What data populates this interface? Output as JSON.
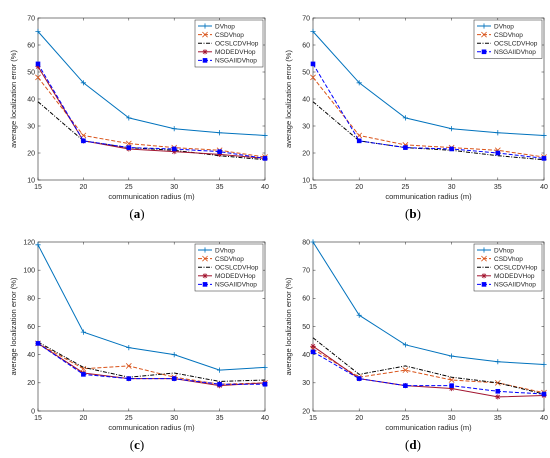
{
  "chart_data": [
    {
      "type": "line",
      "caption": "(a)",
      "xlabel": "communication radius (m)",
      "ylabel": "average localization error (%)",
      "x": [
        15,
        20,
        25,
        30,
        35,
        40
      ],
      "xlim": [
        15,
        40
      ],
      "ylim": [
        10,
        70
      ],
      "xticks": [
        "15",
        "20",
        "25",
        "30",
        "35",
        "40"
      ],
      "yticks": [
        "10",
        "20",
        "30",
        "40",
        "50",
        "60",
        "70"
      ],
      "legend_position": "top-right",
      "series": [
        {
          "name": "DVhop",
          "color": "#0072BD",
          "dash": "",
          "marker": "plus",
          "values": [
            65,
            46,
            33,
            29,
            27.5,
            26.5
          ]
        },
        {
          "name": "CSDVhop",
          "color": "#D95319",
          "dash": "4,2",
          "marker": "x",
          "values": [
            48,
            26.5,
            23.5,
            22,
            21,
            18.5
          ]
        },
        {
          "name": "OCSLCDVHop",
          "color": "#000000",
          "dash": "4,1.5,1,1.5",
          "marker": "none",
          "values": [
            39,
            24.5,
            22,
            21,
            19,
            17.5
          ]
        },
        {
          "name": "MODEDVHop",
          "color": "#A2142F",
          "dash": "",
          "marker": "asterisk",
          "values": [
            52,
            24.5,
            21.5,
            20.5,
            19.5,
            18
          ]
        },
        {
          "name": "NSGAIIDVhop",
          "color": "#0000FF",
          "dash": "4,2",
          "marker": "square",
          "values": [
            53,
            24.5,
            22,
            21.5,
            20.5,
            18
          ]
        }
      ]
    },
    {
      "type": "line",
      "caption": "(b)",
      "xlabel": "communication radius (m)",
      "ylabel": "average localization error (%)",
      "x": [
        15,
        20,
        25,
        30,
        35,
        40
      ],
      "xlim": [
        15,
        40
      ],
      "ylim": [
        10,
        70
      ],
      "xticks": [
        "15",
        "20",
        "25",
        "30",
        "35",
        "40"
      ],
      "yticks": [
        "10",
        "20",
        "30",
        "40",
        "50",
        "60",
        "70"
      ],
      "legend_position": "top-right",
      "series": [
        {
          "name": "DVhop",
          "color": "#0072BD",
          "dash": "",
          "marker": "plus",
          "values": [
            65,
            46,
            33,
            29,
            27.5,
            26.5
          ]
        },
        {
          "name": "CSDVhop",
          "color": "#D95319",
          "dash": "4,2",
          "marker": "x",
          "values": [
            48,
            26.5,
            23,
            22,
            21,
            18.5
          ]
        },
        {
          "name": "OCSLCDVHop",
          "color": "#000000",
          "dash": "4,1.5,1,1.5",
          "marker": "none",
          "values": [
            39,
            24.5,
            22,
            21,
            19,
            17.5
          ]
        },
        {
          "name": "NSGAIIDVhop",
          "color": "#0000FF",
          "dash": "4,2",
          "marker": "square",
          "values": [
            53,
            24.5,
            22,
            21.5,
            20,
            18
          ]
        }
      ]
    },
    {
      "type": "line",
      "caption": "(c)",
      "xlabel": "communication radius (m)",
      "ylabel": "average localization error (%)",
      "x": [
        15,
        20,
        25,
        30,
        35,
        40
      ],
      "xlim": [
        15,
        40
      ],
      "ylim": [
        0,
        120
      ],
      "xticks": [
        "15",
        "20",
        "25",
        "30",
        "35",
        "40"
      ],
      "yticks": [
        "0",
        "20",
        "40",
        "60",
        "80",
        "100",
        "120"
      ],
      "legend_position": "top-right",
      "series": [
        {
          "name": "DVhop",
          "color": "#0072BD",
          "dash": "",
          "marker": "plus",
          "values": [
            118,
            56,
            45,
            40,
            29,
            31
          ]
        },
        {
          "name": "CSDVhop",
          "color": "#D95319",
          "dash": "4,2",
          "marker": "x",
          "values": [
            48,
            30,
            32,
            24,
            19,
            20
          ]
        },
        {
          "name": "OCSLCDVHop",
          "color": "#000000",
          "dash": "4,1.5,1,1.5",
          "marker": "none",
          "values": [
            49,
            31,
            24,
            27,
            21,
            22
          ]
        },
        {
          "name": "MODEDVHop",
          "color": "#A2142F",
          "dash": "",
          "marker": "asterisk",
          "values": [
            48,
            27,
            23,
            23,
            18,
            20
          ]
        },
        {
          "name": "NSGAIIDVhop",
          "color": "#0000FF",
          "dash": "4,2",
          "marker": "square",
          "values": [
            48,
            26,
            23,
            23,
            19,
            19
          ]
        }
      ]
    },
    {
      "type": "line",
      "caption": "(d)",
      "xlabel": "communication radius (m)",
      "ylabel": "average localization error (%)",
      "x": [
        15,
        20,
        25,
        30,
        35,
        40
      ],
      "xlim": [
        15,
        40
      ],
      "ylim": [
        20,
        80
      ],
      "xticks": [
        "15",
        "20",
        "25",
        "30",
        "35",
        "40"
      ],
      "yticks": [
        "20",
        "30",
        "40",
        "50",
        "60",
        "70",
        "80"
      ],
      "legend_position": "top-right",
      "series": [
        {
          "name": "DVhop",
          "color": "#0072BD",
          "dash": "",
          "marker": "plus",
          "values": [
            80,
            54,
            43.5,
            39.5,
            37.5,
            36.5
          ]
        },
        {
          "name": "CSDVhop",
          "color": "#D95319",
          "dash": "4,2",
          "marker": "x",
          "values": [
            42,
            32,
            34.5,
            31,
            30,
            26.5
          ]
        },
        {
          "name": "OCSLCDVHop",
          "color": "#000000",
          "dash": "4,1.5,1,1.5",
          "marker": "none",
          "values": [
            46,
            33,
            36,
            32,
            30,
            26
          ]
        },
        {
          "name": "MODEDVHop",
          "color": "#A2142F",
          "dash": "",
          "marker": "asterisk",
          "values": [
            43,
            31.5,
            29,
            28,
            25,
            25.5
          ]
        },
        {
          "name": "NSGAIIDVhop",
          "color": "#0000FF",
          "dash": "4,2",
          "marker": "square",
          "values": [
            41,
            31.5,
            29,
            29,
            27,
            26
          ]
        }
      ]
    }
  ]
}
